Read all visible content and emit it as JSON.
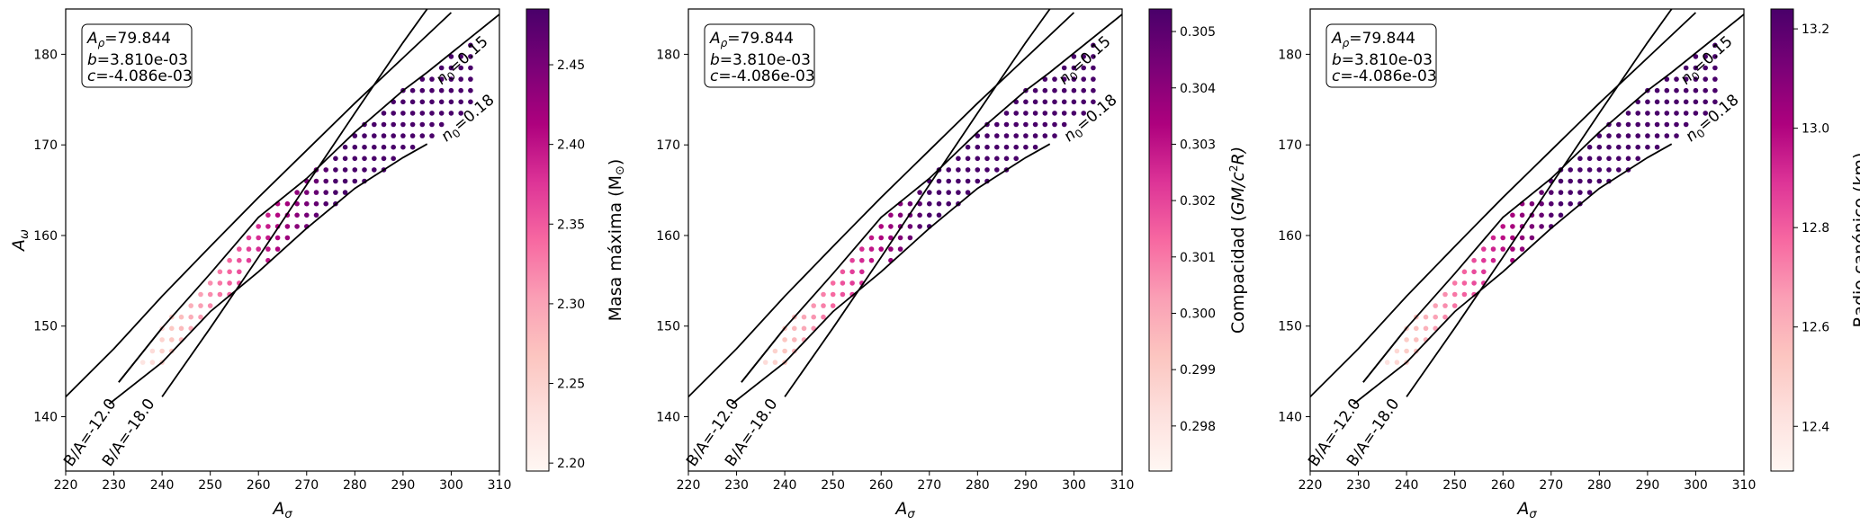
{
  "figure": {
    "panel_count": 3
  },
  "chart_data": [
    {
      "type": "scatter",
      "xlabel": "A",
      "xlabel_sub": "σ",
      "ylabel": "A",
      "ylabel_sub": "ω",
      "xlim": [
        220,
        310
      ],
      "ylim": [
        134,
        185
      ],
      "xticks": [
        220,
        230,
        240,
        250,
        260,
        270,
        280,
        290,
        300,
        310
      ],
      "yticks": [
        140,
        150,
        160,
        170,
        180
      ],
      "grid": false,
      "params": {
        "rho": "A",
        "rho_sub": "ρ",
        "rho_val": "=79.844",
        "b": "b",
        "b_val": "=3.810e-03",
        "c": "c",
        "c_val": "=-4.086e-03"
      },
      "curve_labels": {
        "n015": {
          "sym": "n",
          "sub": "0",
          "val": "=0.15"
        },
        "n018": {
          "sym": "n",
          "sub": "0",
          "val": "=0.18"
        },
        "bm12": "B/A=-12.0",
        "bm18": "B/A=-18.0"
      },
      "colorbar": {
        "label": "Masa máxima (M",
        "label_sym": "⊙",
        "label_end": ")",
        "min": 2.195,
        "max": 2.485,
        "ticks": [
          "2.20",
          "2.25",
          "2.30",
          "2.35",
          "2.40",
          "2.45"
        ]
      },
      "colormap": "RdPu",
      "color_field": {
        "base": 2.195,
        "grad_x": 0.0073,
        "grad_y": -0.0012,
        "ref_x": 232,
        "ref_y": 145
      }
    },
    {
      "type": "scatter",
      "xlabel": "A",
      "xlabel_sub": "σ",
      "xlim": [
        220,
        310
      ],
      "ylim": [
        134,
        185
      ],
      "xticks": [
        220,
        230,
        240,
        250,
        260,
        270,
        280,
        290,
        300,
        310
      ],
      "yticks": [
        140,
        150,
        160,
        170,
        180
      ],
      "grid": false,
      "params": {
        "rho": "A",
        "rho_sub": "ρ",
        "rho_val": "=79.844",
        "b": "b",
        "b_val": "=3.810e-03",
        "c": "c",
        "c_val": "=-4.086e-03"
      },
      "curve_labels": {
        "n015": {
          "sym": "n",
          "sub": "0",
          "val": "=0.15"
        },
        "n018": {
          "sym": "n",
          "sub": "0",
          "val": "=0.18"
        },
        "bm12": "B/A=-12.0",
        "bm18": "B/A=-18.0"
      },
      "colorbar": {
        "label": "Compacidad (",
        "label_italic": "GM/c",
        "label_sup": "2",
        "label_end": "R)",
        "min": 0.2972,
        "max": 0.3054,
        "ticks": [
          "0.298",
          "0.299",
          "0.300",
          "0.301",
          "0.302",
          "0.303",
          "0.304",
          "0.305"
        ]
      },
      "colormap": "RdPu",
      "color_field": {
        "base": 0.2975,
        "grad_x": 0.00022,
        "grad_y": -2e-05,
        "ref_x": 232,
        "ref_y": 145
      }
    },
    {
      "type": "scatter",
      "xlabel": "A",
      "xlabel_sub": "σ",
      "xlim": [
        220,
        310
      ],
      "ylim": [
        134,
        185
      ],
      "xticks": [
        220,
        230,
        240,
        250,
        260,
        270,
        280,
        290,
        300,
        310
      ],
      "yticks": [
        140,
        150,
        160,
        170,
        180
      ],
      "grid": false,
      "params": {
        "rho": "A",
        "rho_sub": "ρ",
        "rho_val": "=79.844",
        "b": "b",
        "b_val": "=3.810e-03",
        "c": "c",
        "c_val": "=-4.086e-03"
      },
      "curve_labels": {
        "n015": {
          "sym": "n",
          "sub": "0",
          "val": "=0.15"
        },
        "n018": {
          "sym": "n",
          "sub": "0",
          "val": "=0.18"
        },
        "bm12": "B/A=-12.0",
        "bm18": "B/A=-18.0"
      },
      "colorbar": {
        "label": "Radio canónico (km)",
        "min": 12.31,
        "max": 13.24,
        "ticks": [
          "12.4",
          "12.6",
          "12.8",
          "13.0",
          "13.2"
        ]
      },
      "colormap": "RdPu",
      "color_field": {
        "base": 12.32,
        "grad_x": 0.024,
        "grad_y": -0.001,
        "ref_x": 232,
        "ref_y": 145
      }
    }
  ],
  "curves": {
    "b_minus_12": [
      [
        220,
        142.2
      ],
      [
        230,
        147.5
      ],
      [
        240,
        153.3
      ],
      [
        250,
        158.8
      ],
      [
        260,
        164.2
      ],
      [
        270,
        169.4
      ],
      [
        280,
        174.6
      ],
      [
        290,
        179.6
      ],
      [
        300,
        184.6
      ]
    ],
    "b_minus_18": [
      [
        240,
        142.2
      ],
      [
        250,
        149.8
      ],
      [
        260,
        157.6
      ],
      [
        270,
        165.6
      ],
      [
        280,
        173.5
      ],
      [
        290,
        181.3
      ],
      [
        295,
        185.0
      ]
    ],
    "n_015": [
      [
        231,
        143.8
      ],
      [
        240,
        149.8
      ],
      [
        250,
        155.8
      ],
      [
        260,
        162.0
      ],
      [
        270,
        166.3
      ],
      [
        280,
        171.4
      ],
      [
        290,
        176.0
      ],
      [
        295,
        178.0
      ]
    ],
    "n_018": [
      [
        229,
        141.4
      ],
      [
        240,
        146.0
      ],
      [
        250,
        151.6
      ],
      [
        260,
        156.0
      ],
      [
        270,
        160.8
      ],
      [
        280,
        165.2
      ],
      [
        290,
        168.6
      ],
      [
        295,
        170.1
      ]
    ],
    "frame_015": [
      [
        295,
        178.0
      ],
      [
        310,
        184.4
      ]
    ],
    "frame_018": [
      [
        296,
        170.3
      ]
    ]
  },
  "dots": {
    "x_start": 232,
    "x_end": 304,
    "x_step": 2,
    "y_start": 146,
    "y_end": 183,
    "y_step": 1.25
  }
}
